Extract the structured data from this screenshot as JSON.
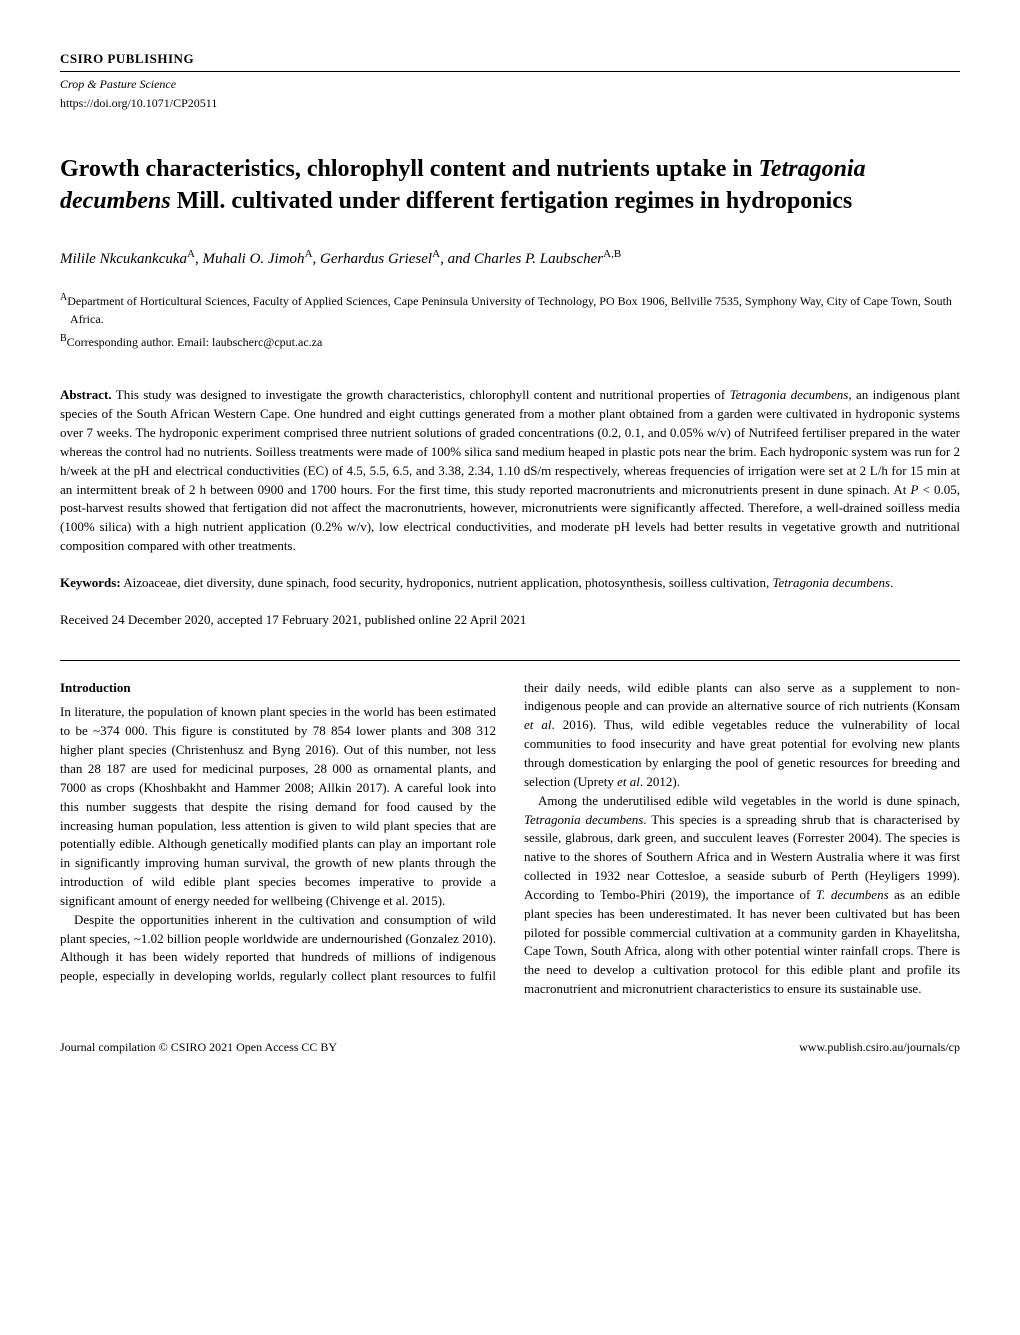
{
  "header": {
    "publisher": "CSIRO PUBLISHING",
    "journal": "Crop & Pasture Science",
    "doi": "https://doi.org/10.1071/CP20511"
  },
  "title": {
    "pre": "Growth characteristics, chlorophyll content and nutrients uptake in ",
    "species": "Tetragonia decumbens",
    "post": " Mill. cultivated under different fertigation regimes in hydroponics"
  },
  "authors": {
    "a1_name": "Milile Nkcukankcuka",
    "a1_aff": "A",
    "a2_name": "Muhali O. Jimoh",
    "a2_aff": "A",
    "a3_name": "Gerhardus Griesel",
    "a3_aff": "A",
    "a4_name": "Charles P. Laubscher",
    "a4_aff": "A,B",
    "sep": ", ",
    "and": ", and "
  },
  "affiliations": {
    "a_sup": "A",
    "a_text": "Department of Horticultural Sciences, Faculty of Applied Sciences, Cape Peninsula University of Technology, PO Box 1906, Bellville 7535, Symphony Way, City of Cape Town, South Africa.",
    "b_sup": "B",
    "b_text": "Corresponding author. Email: laubscherc@cput.ac.za"
  },
  "abstract": {
    "label": "Abstract.",
    "text_pre": "This study was designed to investigate the growth characteristics, chlorophyll content and nutritional properties of ",
    "species": "Tetragonia decumbens",
    "text_post": ", an indigenous plant species of the South African Western Cape. One hundred and eight cuttings generated from a mother plant obtained from a garden were cultivated in hydroponic systems over 7 weeks. The hydroponic experiment comprised three nutrient solutions of graded concentrations (0.2, 0.1, and 0.05% w/v) of Nutrifeed fertiliser prepared in the water whereas the control had no nutrients. Soilless treatments were made of 100% silica sand medium heaped in plastic pots near the brim. Each hydroponic system was run for 2 h/week at the pH and electrical conductivities (EC) of 4.5, 5.5, 6.5, and 3.38, 2.34, 1.10 dS/m respectively, whereas frequencies of irrigation were set at 2 L/h for 15 min at an intermittent break of 2 h between 0900 and 1700 hours. For the first time, this study reported macronutrients and micronutrients present in dune spinach. At ",
    "pval": "P",
    "text_post2": " < 0.05, post-harvest results showed that fertigation did not affect the macronutrients, however, micronutrients were significantly affected. Therefore, a well-drained soilless media (100% silica) with a high nutrient application (0.2% w/v), low electrical conductivities, and moderate pH levels had better results in vegetative growth and nutritional composition compared with other treatments."
  },
  "keywords": {
    "label": "Keywords:",
    "text": " Aizoaceae, diet diversity, dune spinach, food security, hydroponics, nutrient application, photosynthesis, soilless cultivation, ",
    "species": "Tetragonia decumbens",
    "period": "."
  },
  "received": "Received 24 December 2020, accepted 17 February 2021, published online 22 April 2021",
  "body": {
    "intro_heading": "Introduction",
    "p1": "In literature, the population of known plant species in the world has been estimated to be ~374 000. This figure is constituted by 78 854 lower plants and 308 312 higher plant species (Christenhusz and Byng 2016). Out of this number, not less than 28 187 are used for medicinal purposes, 28 000 as ornamental plants, and 7000 as crops (Khoshbakht and Hammer 2008; Allkin 2017). A careful look into this number suggests that despite the rising demand for food caused by the increasing human population, less attention is given to wild plant species that are potentially edible. Although genetically modified plants can play an important role in significantly improving human survival, the growth of new plants through the introduction of wild edible plant species becomes imperative to provide a significant amount of energy needed for wellbeing (Chivenge et al. 2015).",
    "p2_pre": "Despite the opportunities inherent in the cultivation and consumption of wild plant species, ~1.02 billion people worldwide are undernourished (Gonzalez 2010). Although it has been widely reported that hundreds of millions of indigenous people, especially in developing worlds, regularly collect plant resources to fulfil their daily needs, wild edible plants can also serve as a supplement to non-indigenous people and can provide an alternative source of rich nutrients (Konsam ",
    "p2_etal1": "et al",
    "p2_mid": ". 2016). Thus, wild edible vegetables reduce the vulnerability of local communities to food insecurity and have great potential for evolving new plants through domestication by enlarging the pool of genetic resources for breeding and selection (Uprety ",
    "p2_etal2": "et al",
    "p2_post": ". 2012).",
    "p3_pre": "Among the underutilised edible wild vegetables in the world is dune spinach, ",
    "p3_species1": "Tetragonia decumbens",
    "p3_mid1": ". This species is a spreading shrub that is characterised by sessile, glabrous, dark green, and succulent leaves (Forrester 2004). The species is native to the shores of Southern Africa and in Western Australia where it was first collected in 1932 near Cottesloe, a seaside suburb of Perth (Heyligers 1999). According to Tembo-Phiri (2019), the importance of ",
    "p3_species2": "T. decumbens",
    "p3_post": " as an edible plant species has been underestimated. It has never been cultivated but has been piloted for possible commercial cultivation at a community garden in Khayelitsha, Cape Town, South Africa, along with other potential winter rainfall crops. There is the need to develop a cultivation protocol for this edible plant and profile its macronutrient and micronutrient characteristics to ensure its sustainable use."
  },
  "footer": {
    "left": "Journal compilation © CSIRO 2021 Open Access CC BY",
    "right": "www.publish.csiro.au/journals/cp"
  }
}
